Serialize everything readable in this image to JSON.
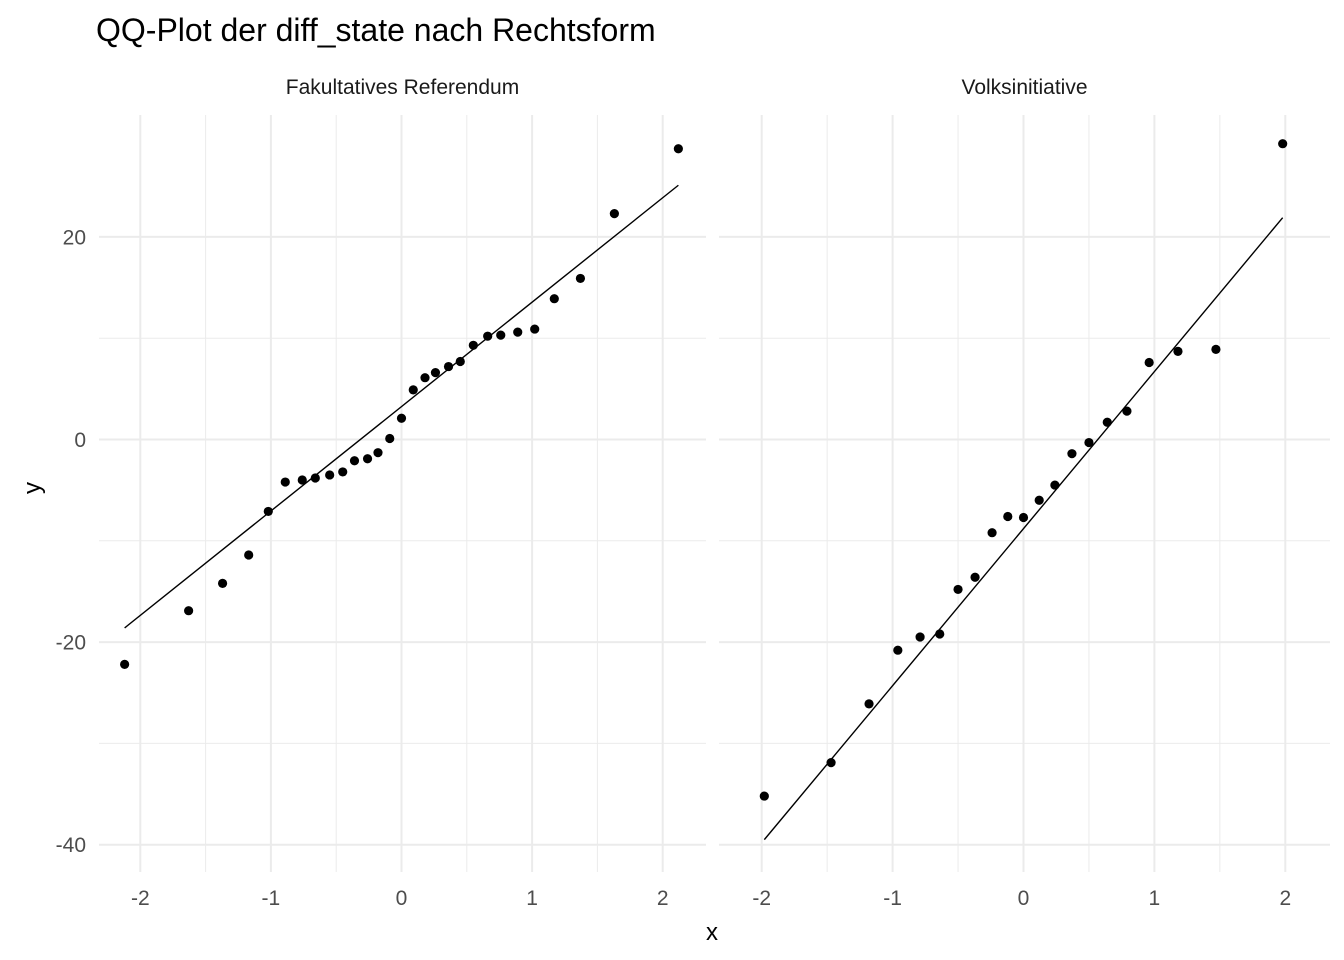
{
  "chart_data": {
    "type": "scatter",
    "title": "QQ-Plot der diff_state nach Rechtsform",
    "xlabel": "x",
    "ylabel": "y",
    "xlim": [
      -2.2,
      2.2
    ],
    "ylim": [
      -42,
      30
    ],
    "x_ticks": [
      -2,
      -1,
      0,
      1,
      2
    ],
    "x_tick_labels": [
      "-2",
      "-1",
      "0",
      "1",
      "2"
    ],
    "y_ticks": [
      -40,
      -20,
      0,
      20
    ],
    "y_tick_labels": [
      "-40",
      "-20",
      "0",
      "20"
    ],
    "grid": true,
    "point_color": "#000000",
    "line_color": "#000000",
    "panels": [
      {
        "facet": "Fakultatives Referendum",
        "points": [
          [
            -2.12,
            -22.2
          ],
          [
            -1.63,
            -16.9
          ],
          [
            -1.37,
            -14.2
          ],
          [
            -1.17,
            -11.4
          ],
          [
            -1.02,
            -7.1
          ],
          [
            -0.89,
            -4.2
          ],
          [
            -0.76,
            -4.0
          ],
          [
            -0.66,
            -3.8
          ],
          [
            -0.55,
            -3.5
          ],
          [
            -0.45,
            -3.2
          ],
          [
            -0.36,
            -2.1
          ],
          [
            -0.26,
            -1.9
          ],
          [
            -0.18,
            -1.3
          ],
          [
            -0.09,
            0.1
          ],
          [
            0.0,
            2.1
          ],
          [
            0.09,
            4.9
          ],
          [
            0.18,
            6.1
          ],
          [
            0.26,
            6.6
          ],
          [
            0.36,
            7.2
          ],
          [
            0.45,
            7.7
          ],
          [
            0.55,
            9.3
          ],
          [
            0.66,
            10.2
          ],
          [
            0.76,
            10.3
          ],
          [
            0.89,
            10.6
          ],
          [
            1.02,
            10.9
          ],
          [
            1.17,
            13.9
          ],
          [
            1.37,
            15.9
          ],
          [
            1.63,
            22.3
          ],
          [
            2.12,
            28.7
          ]
        ],
        "line": {
          "x": [
            -2.12,
            2.12
          ],
          "y": [
            -18.6,
            25.1
          ]
        }
      },
      {
        "facet": "Volksinitiative",
        "points": [
          [
            -1.98,
            -35.2
          ],
          [
            -1.47,
            -31.9
          ],
          [
            -1.18,
            -26.1
          ],
          [
            -0.96,
            -20.8
          ],
          [
            -0.79,
            -19.5
          ],
          [
            -0.64,
            -19.2
          ],
          [
            -0.5,
            -14.8
          ],
          [
            -0.37,
            -13.6
          ],
          [
            -0.24,
            -9.2
          ],
          [
            -0.12,
            -7.6
          ],
          [
            0.0,
            -7.7
          ],
          [
            0.12,
            -6.0
          ],
          [
            0.24,
            -4.5
          ],
          [
            0.37,
            -1.4
          ],
          [
            0.5,
            -0.3
          ],
          [
            0.64,
            1.7
          ],
          [
            0.79,
            2.8
          ],
          [
            0.96,
            7.6
          ],
          [
            1.18,
            8.7
          ],
          [
            1.47,
            8.9
          ],
          [
            1.98,
            29.2
          ]
        ],
        "line": {
          "x": [
            -1.98,
            1.98
          ],
          "y": [
            -39.5,
            21.9
          ]
        }
      }
    ]
  }
}
